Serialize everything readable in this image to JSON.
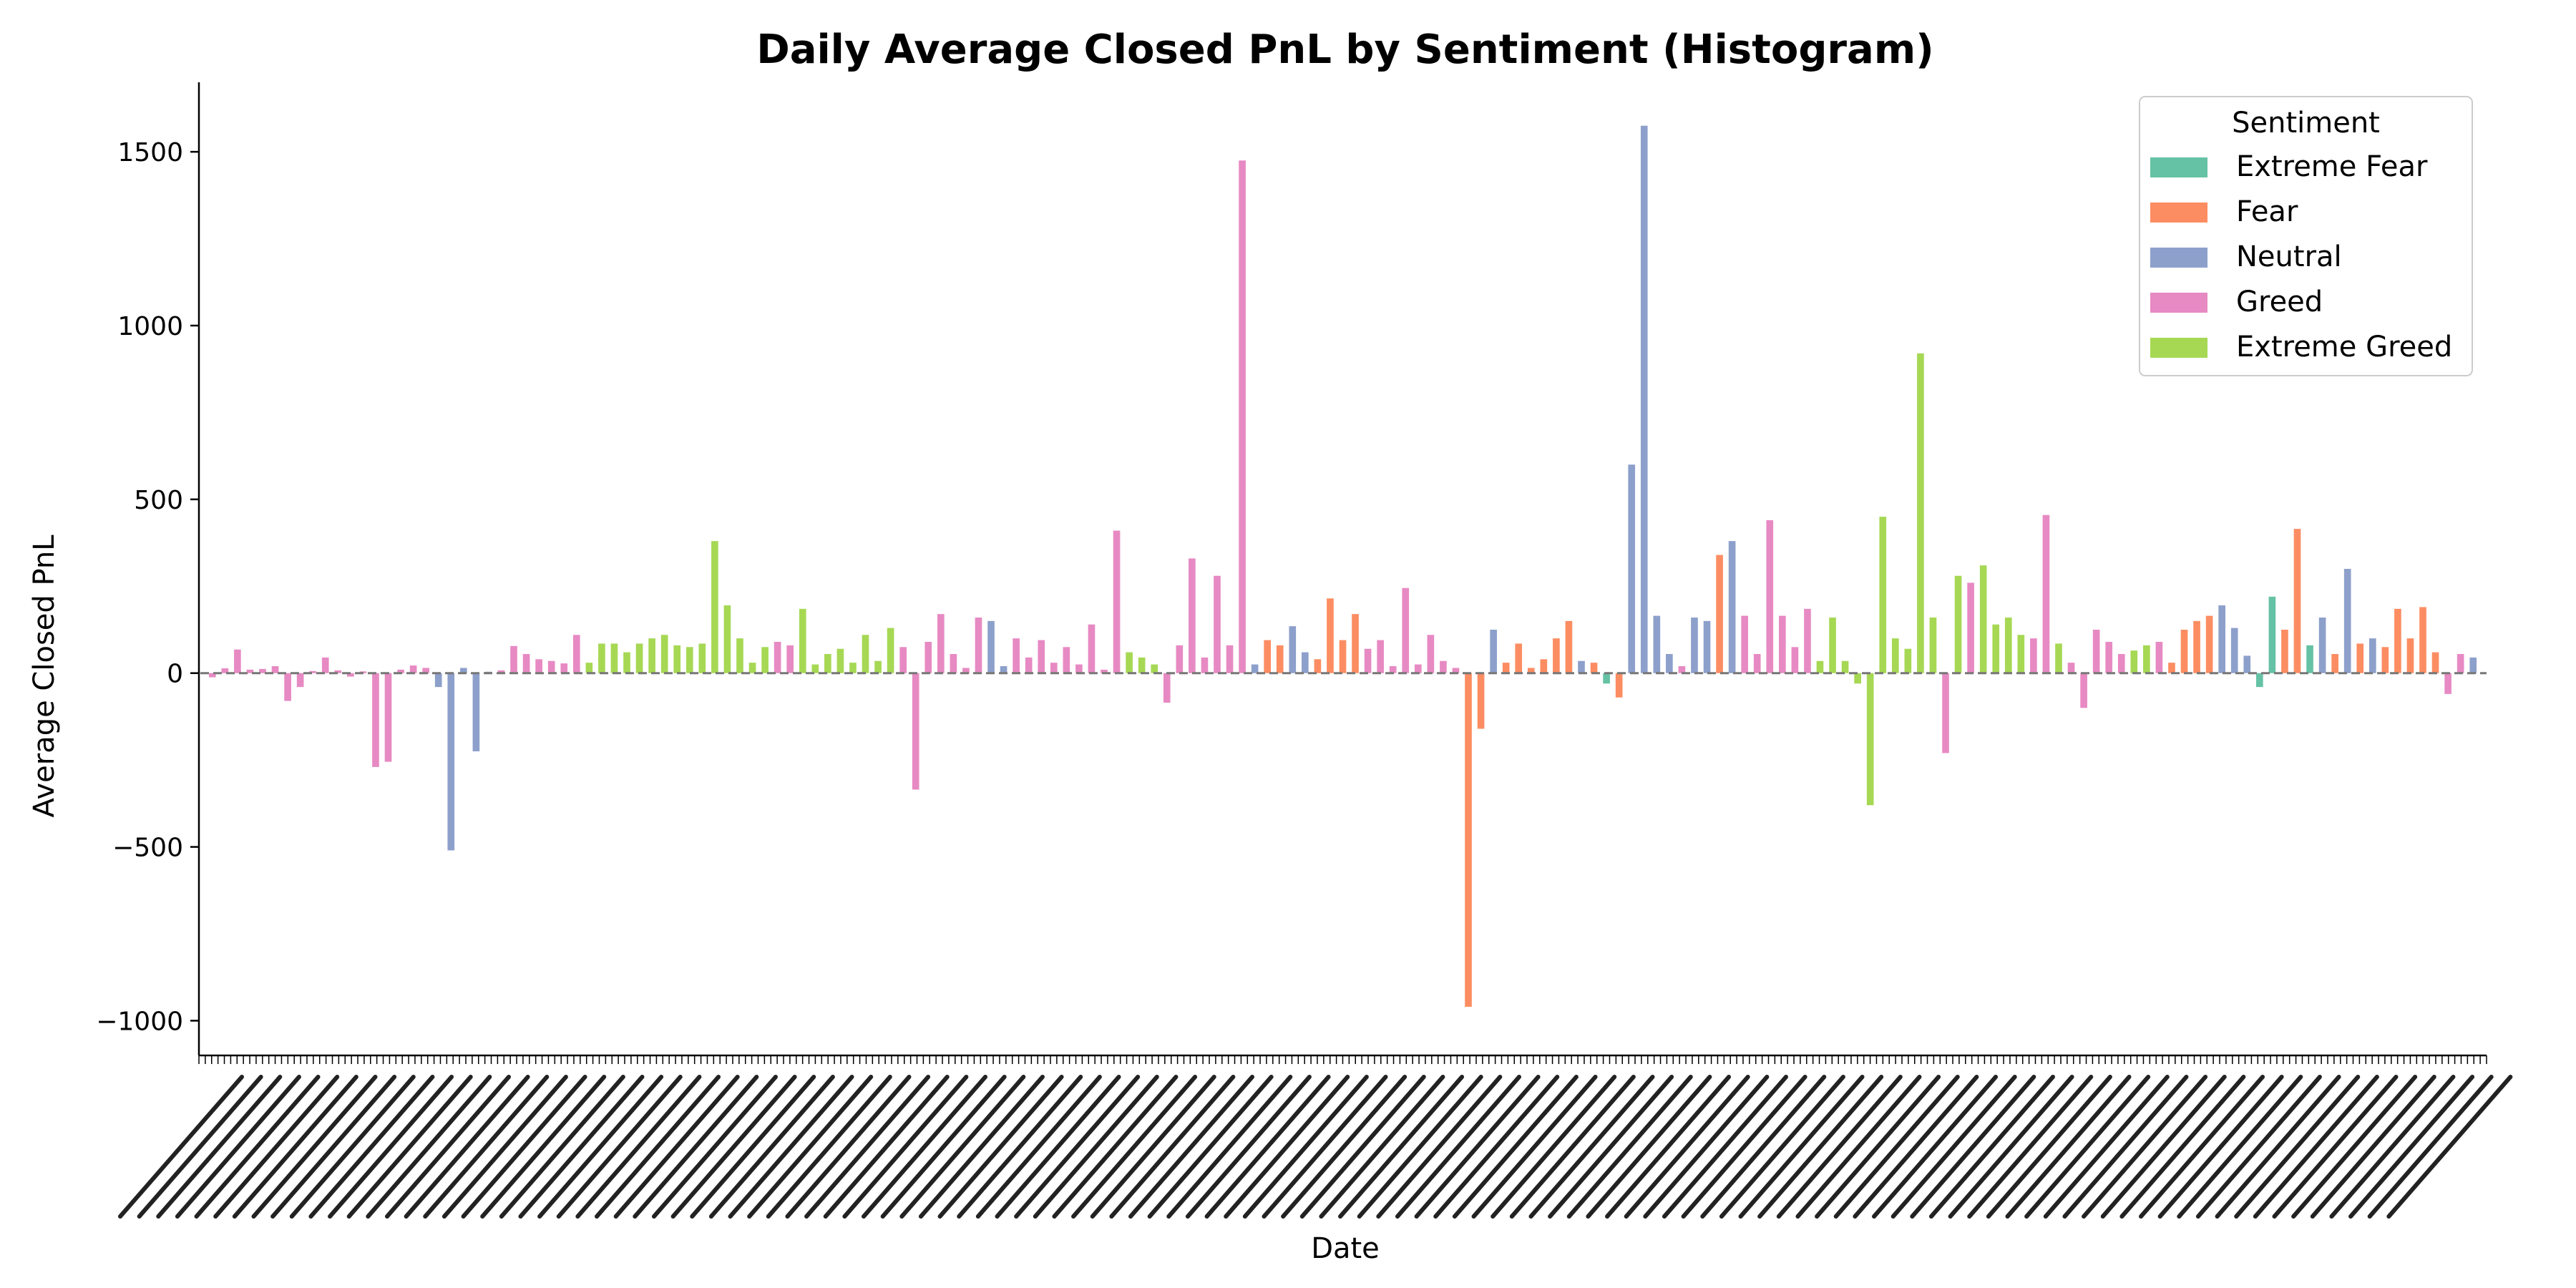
{
  "chart_data": {
    "type": "bar",
    "title": "Daily Average Closed PnL by Sentiment (Histogram)",
    "xlabel": "Date",
    "ylabel": "Average Closed PnL",
    "ylim": [
      -1100,
      1700
    ],
    "yticks": [
      -1000,
      -500,
      0,
      500,
      1000,
      1500
    ],
    "grid": false,
    "zero_line": true,
    "legend": {
      "title": "Sentiment",
      "position": "top-right"
    },
    "series": [
      {
        "name": "Extreme Fear",
        "color": "#66c2a5"
      },
      {
        "name": "Fear",
        "color": "#fc8d62"
      },
      {
        "name": "Neutral",
        "color": "#8da0cb"
      },
      {
        "name": "Greed",
        "color": "#e78ac3"
      },
      {
        "name": "Extreme Greed",
        "color": "#a6d854"
      }
    ],
    "x_tick_labels_legible": false,
    "bars": [
      [
        "Greed",
        -12
      ],
      [
        "Greed",
        14
      ],
      [
        "Greed",
        68
      ],
      [
        "Greed",
        10
      ],
      [
        "Greed",
        12
      ],
      [
        "Greed",
        20
      ],
      [
        "Greed",
        -80
      ],
      [
        "Greed",
        -40
      ],
      [
        "Greed",
        6
      ],
      [
        "Greed",
        45
      ],
      [
        "Greed",
        8
      ],
      [
        "Greed",
        -10
      ],
      [
        "Greed",
        5
      ],
      [
        "Greed",
        -270
      ],
      [
        "Greed",
        -255
      ],
      [
        "Greed",
        10
      ],
      [
        "Greed",
        22
      ],
      [
        "Greed",
        15
      ],
      [
        "Neutral",
        -40
      ],
      [
        "Neutral",
        -510
      ],
      [
        "Neutral",
        15
      ],
      [
        "Neutral",
        -225
      ],
      [
        "Neutral",
        4
      ],
      [
        "Greed",
        8
      ],
      [
        "Greed",
        78
      ],
      [
        "Greed",
        55
      ],
      [
        "Greed",
        40
      ],
      [
        "Greed",
        35
      ],
      [
        "Greed",
        28
      ],
      [
        "Greed",
        110
      ],
      [
        "Extreme Greed",
        30
      ],
      [
        "Extreme Greed",
        85
      ],
      [
        "Extreme Greed",
        85
      ],
      [
        "Extreme Greed",
        60
      ],
      [
        "Extreme Greed",
        85
      ],
      [
        "Extreme Greed",
        100
      ],
      [
        "Extreme Greed",
        110
      ],
      [
        "Extreme Greed",
        80
      ],
      [
        "Extreme Greed",
        75
      ],
      [
        "Extreme Greed",
        85
      ],
      [
        "Extreme Greed",
        380
      ],
      [
        "Extreme Greed",
        195
      ],
      [
        "Extreme Greed",
        100
      ],
      [
        "Extreme Greed",
        30
      ],
      [
        "Extreme Greed",
        75
      ],
      [
        "Greed",
        90
      ],
      [
        "Greed",
        80
      ],
      [
        "Extreme Greed",
        185
      ],
      [
        "Extreme Greed",
        25
      ],
      [
        "Extreme Greed",
        55
      ],
      [
        "Extreme Greed",
        70
      ],
      [
        "Extreme Greed",
        30
      ],
      [
        "Extreme Greed",
        110
      ],
      [
        "Extreme Greed",
        35
      ],
      [
        "Extreme Greed",
        130
      ],
      [
        "Greed",
        75
      ],
      [
        "Greed",
        -335
      ],
      [
        "Greed",
        90
      ],
      [
        "Greed",
        170
      ],
      [
        "Greed",
        55
      ],
      [
        "Greed",
        15
      ],
      [
        "Greed",
        160
      ],
      [
        "Neutral",
        150
      ],
      [
        "Neutral",
        20
      ],
      [
        "Greed",
        100
      ],
      [
        "Greed",
        45
      ],
      [
        "Greed",
        95
      ],
      [
        "Greed",
        30
      ],
      [
        "Greed",
        75
      ],
      [
        "Greed",
        25
      ],
      [
        "Greed",
        140
      ],
      [
        "Greed",
        10
      ],
      [
        "Greed",
        410
      ],
      [
        "Extreme Greed",
        60
      ],
      [
        "Extreme Greed",
        45
      ],
      [
        "Extreme Greed",
        25
      ],
      [
        "Greed",
        -85
      ],
      [
        "Greed",
        80
      ],
      [
        "Greed",
        330
      ],
      [
        "Greed",
        45
      ],
      [
        "Greed",
        280
      ],
      [
        "Greed",
        80
      ],
      [
        "Greed",
        1475
      ],
      [
        "Neutral",
        25
      ],
      [
        "Fear",
        95
      ],
      [
        "Fear",
        80
      ],
      [
        "Neutral",
        135
      ],
      [
        "Neutral",
        60
      ],
      [
        "Fear",
        40
      ],
      [
        "Fear",
        215
      ],
      [
        "Fear",
        95
      ],
      [
        "Fear",
        170
      ],
      [
        "Greed",
        70
      ],
      [
        "Greed",
        95
      ],
      [
        "Greed",
        20
      ],
      [
        "Greed",
        245
      ],
      [
        "Greed",
        25
      ],
      [
        "Greed",
        110
      ],
      [
        "Greed",
        35
      ],
      [
        "Greed",
        15
      ],
      [
        "Fear",
        -960
      ],
      [
        "Fear",
        -160
      ],
      [
        "Neutral",
        125
      ],
      [
        "Fear",
        30
      ],
      [
        "Fear",
        85
      ],
      [
        "Fear",
        15
      ],
      [
        "Fear",
        40
      ],
      [
        "Fear",
        100
      ],
      [
        "Fear",
        150
      ],
      [
        "Neutral",
        35
      ],
      [
        "Fear",
        30
      ],
      [
        "Extreme Fear",
        -30
      ],
      [
        "Fear",
        -70
      ],
      [
        "Neutral",
        600
      ],
      [
        "Neutral",
        1575
      ],
      [
        "Neutral",
        165
      ],
      [
        "Neutral",
        55
      ],
      [
        "Greed",
        20
      ],
      [
        "Neutral",
        160
      ],
      [
        "Neutral",
        150
      ],
      [
        "Fear",
        340
      ],
      [
        "Neutral",
        380
      ],
      [
        "Greed",
        165
      ],
      [
        "Greed",
        55
      ],
      [
        "Greed",
        440
      ],
      [
        "Greed",
        165
      ],
      [
        "Greed",
        75
      ],
      [
        "Greed",
        185
      ],
      [
        "Extreme Greed",
        35
      ],
      [
        "Extreme Greed",
        160
      ],
      [
        "Extreme Greed",
        35
      ],
      [
        "Extreme Greed",
        -30
      ],
      [
        "Extreme Greed",
        -380
      ],
      [
        "Extreme Greed",
        450
      ],
      [
        "Extreme Greed",
        100
      ],
      [
        "Extreme Greed",
        70
      ],
      [
        "Extreme Greed",
        920
      ],
      [
        "Extreme Greed",
        160
      ],
      [
        "Greed",
        -230
      ],
      [
        "Extreme Greed",
        280
      ],
      [
        "Greed",
        260
      ],
      [
        "Extreme Greed",
        310
      ],
      [
        "Extreme Greed",
        140
      ],
      [
        "Extreme Greed",
        160
      ],
      [
        "Extreme Greed",
        110
      ],
      [
        "Greed",
        100
      ],
      [
        "Greed",
        455
      ],
      [
        "Extreme Greed",
        85
      ],
      [
        "Greed",
        30
      ],
      [
        "Greed",
        -100
      ],
      [
        "Greed",
        125
      ],
      [
        "Greed",
        90
      ],
      [
        "Greed",
        55
      ],
      [
        "Extreme Greed",
        65
      ],
      [
        "Extreme Greed",
        80
      ],
      [
        "Greed",
        90
      ],
      [
        "Fear",
        30
      ],
      [
        "Fear",
        125
      ],
      [
        "Fear",
        150
      ],
      [
        "Fear",
        165
      ],
      [
        "Neutral",
        195
      ],
      [
        "Neutral",
        130
      ],
      [
        "Neutral",
        50
      ],
      [
        "Extreme Fear",
        -40
      ],
      [
        "Extreme Fear",
        220
      ],
      [
        "Fear",
        125
      ],
      [
        "Fear",
        415
      ],
      [
        "Extreme Fear",
        80
      ],
      [
        "Neutral",
        160
      ],
      [
        "Fear",
        55
      ],
      [
        "Neutral",
        300
      ],
      [
        "Fear",
        85
      ],
      [
        "Neutral",
        100
      ],
      [
        "Fear",
        75
      ],
      [
        "Fear",
        185
      ],
      [
        "Fear",
        100
      ],
      [
        "Fear",
        190
      ],
      [
        "Fear",
        60
      ],
      [
        "Greed",
        -60
      ],
      [
        "Greed",
        55
      ],
      [
        "Neutral",
        45
      ]
    ]
  }
}
